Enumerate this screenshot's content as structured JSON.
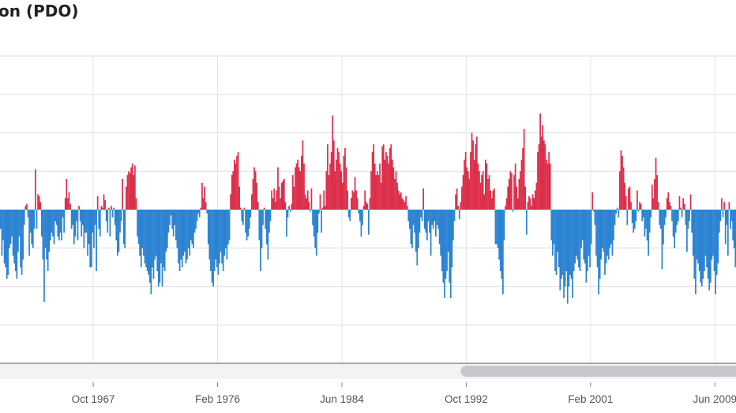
{
  "title": "on (PDO)",
  "colors": {
    "positive": "#dc2f4b",
    "negative": "#2b83d3",
    "grid": "#e4e4e4",
    "navigator_track": "#f3f3f4",
    "navigator_thumb": "#c6c8cb"
  },
  "chart_data": {
    "type": "bar",
    "title": "on (PDO)",
    "xlabel": "",
    "ylabel": "",
    "ylim": [
      -4,
      4
    ],
    "y_gridlines": [
      4,
      3,
      2,
      1,
      0,
      -1,
      -2,
      -3
    ],
    "grid": true,
    "start_month": "1961-07",
    "frequency": "monthly",
    "x_ticks": [
      {
        "label": "Oct 1967",
        "month": "1967-10"
      },
      {
        "label": "Feb 1976",
        "month": "1976-02"
      },
      {
        "label": "Jun 1984",
        "month": "1984-06"
      },
      {
        "label": "Oct 1992",
        "month": "1992-10"
      },
      {
        "label": "Feb 2001",
        "month": "2001-02"
      },
      {
        "label": "Jun 2009",
        "month": "2009-06"
      }
    ],
    "navigator_range_fraction": [
      0.626,
      1.0
    ],
    "values": [
      -0.5,
      -1.2,
      -0.8,
      -1.4,
      -1.5,
      -1.8,
      -1.7,
      -1.0,
      -0.9,
      -0.7,
      -1.2,
      -1.4,
      -1.6,
      -1.8,
      -1.1,
      -0.7,
      -1.5,
      -1.7,
      -1.3,
      -0.4,
      0.1,
      0.15,
      -0.2,
      -1.2,
      -0.6,
      -0.9,
      -1.0,
      -0.5,
      1.05,
      -0.5,
      0.4,
      0.35,
      0.2,
      -0.7,
      -1.3,
      -2.4,
      -1.0,
      -1.3,
      -1.6,
      -1.1,
      -0.8,
      -0.6,
      -0.7,
      -0.9,
      -0.3,
      -0.4,
      -0.7,
      -0.8,
      -0.6,
      -0.8,
      -0.2,
      -0.6,
      0.3,
      0.8,
      0.3,
      0.45,
      0.15,
      -0.5,
      -0.4,
      -0.9,
      -0.7,
      -0.3,
      -0.8,
      0.1,
      -0.3,
      -0.7,
      -0.4,
      -1.0,
      -0.6,
      -0.6,
      -1.2,
      -0.9,
      -1.5,
      -1.5,
      -0.6,
      -1.0,
      -0.4,
      -1.6,
      0.35,
      -0.5,
      -0.7,
      0.1,
      0.05,
      0.4,
      0.25,
      -0.3,
      -0.6,
      0.05,
      -0.7,
      0.1,
      -0.2,
      0.05,
      -0.4,
      -0.8,
      -1.2,
      -1.1,
      -0.6,
      -0.3,
      0.8,
      -0.9,
      -1.0,
      0.6,
      0.9,
      1.0,
      0.95,
      1.1,
      1.2,
      0.9,
      1.15,
      0.3,
      -0.7,
      -0.9,
      -1.2,
      -1.5,
      -1.0,
      -1.2,
      -1.4,
      -1.5,
      -1.6,
      -1.7,
      -1.9,
      -2.2,
      -1.5,
      -1.8,
      -1.3,
      -1.2,
      -1.6,
      -2.0,
      -1.9,
      -1.4,
      -2.0,
      -1.5,
      -1.6,
      -1.1,
      -1.0,
      -0.6,
      -0.4,
      -0.15,
      -0.5,
      -0.7,
      -0.4,
      -0.8,
      -1.0,
      -1.4,
      -1.6,
      -1.3,
      -1.5,
      -1.2,
      -1.1,
      -1.4,
      -1.3,
      -1.0,
      -1.2,
      -0.8,
      -0.9,
      -1.0,
      -0.6,
      -0.5,
      -0.3,
      -0.1,
      -0.2,
      0.05,
      0.7,
      0.3,
      0.6,
      0.2,
      -0.1,
      -0.9,
      -1.3,
      -1.6,
      -1.9,
      -2.0,
      -1.6,
      -1.3,
      -1.5,
      -1.7,
      -1.4,
      -1.1,
      -1.4,
      -1.6,
      -1.2,
      -1.0,
      -1.3,
      -0.9,
      -0.8,
      0.4,
      0.9,
      1.0,
      1.3,
      1.2,
      1.4,
      1.5,
      0.6,
      0.05,
      -0.3,
      -0.4,
      0.05,
      -0.6,
      -0.8,
      -0.7,
      -0.5,
      -0.2,
      0.4,
      0.8,
      1.1,
      1.0,
      0.7,
      0.2,
      -0.8,
      -1.6,
      -1.0,
      -0.4,
      0.05,
      -0.5,
      -0.9,
      -1.3,
      -0.6,
      -0.3,
      0.5,
      0.3,
      0.55,
      0.2,
      0.5,
      1.1,
      0.6,
      0.3,
      0.7,
      0.75,
      0.8,
      0.2,
      -0.7,
      -0.2,
      0.1,
      -0.05,
      0.15,
      0.9,
      0.6,
      1.1,
      1.2,
      1.3,
      1.1,
      1.0,
      1.4,
      1.8,
      1.2,
      0.4,
      0.3,
      0.5,
      0.2,
      -0.05,
      0.55,
      -0.4,
      -0.7,
      -1.0,
      -1.2,
      -0.6,
      -0.1,
      0.4,
      -0.6,
      0.05,
      0.5,
      0.1,
      1.0,
      1.7,
      0.9,
      1.2,
      1.5,
      2.45,
      1.8,
      1.0,
      1.3,
      1.6,
      1.5,
      1.2,
      1.0,
      0.7,
      1.4,
      1.6,
      1.1,
      0.5,
      -0.2,
      -0.3,
      0.3,
      0.5,
      0.45,
      0.85,
      0.5,
      0.3,
      -0.1,
      -0.3,
      -0.7,
      -0.4,
      0.1,
      0.5,
      0.2,
      0.15,
      -0.65,
      0.3,
      1.0,
      1.5,
      1.7,
      1.2,
      0.9,
      1.0,
      0.9,
      1.2,
      0.7,
      1.65,
      1.7,
      1.3,
      1.5,
      1.4,
      1.2,
      1.6,
      1.7,
      1.3,
      1.1,
      0.8,
      1.0,
      0.7,
      0.5,
      0.4,
      0.45,
      0.3,
      0.25,
      0.2,
      0.35,
      0.1,
      -0.3,
      -0.5,
      -0.9,
      -1.0,
      -0.4,
      -0.6,
      -1.1,
      -1.45,
      -1.0,
      -0.6,
      -0.2,
      -0.3,
      0.55,
      -0.5,
      -0.6,
      -0.8,
      -0.3,
      -0.6,
      -1.2,
      -0.4,
      -0.5,
      -0.3,
      -0.7,
      -0.4,
      -0.5,
      -0.9,
      -1.2,
      -1.6,
      -1.9,
      -2.3,
      -1.8,
      -1.6,
      -1.1,
      -1.9,
      -2.3,
      -1.5,
      -0.8,
      -0.3,
      0.4,
      0.55,
      0.1,
      -0.25,
      0.2,
      0.6,
      0.9,
      1.3,
      1.5,
      1.1,
      1.0,
      0.8,
      1.5,
      2.0,
      1.8,
      1.3,
      1.7,
      1.9,
      1.2,
      1.0,
      0.7,
      0.9,
      1.0,
      0.4,
      1.3,
      1.2,
      0.8,
      0.9,
      0.5,
      0.3,
      0.5,
      0.55,
      -0.9,
      -0.9,
      -1.0,
      -1.3,
      -1.6,
      -1.8,
      -2.2,
      -0.8,
      0.1,
      0.3,
      0.6,
      0.8,
      1.0,
      0.95,
      -0.05,
      0.9,
      1.2,
      0.6,
      0.3,
      0.8,
      1.0,
      1.3,
      1.6,
      2.1,
      0.6,
      -0.65,
      0.2,
      0.35,
      0.3,
      0.1,
      0.4,
      0.3,
      0.5,
      0.7,
      1.5,
      1.7,
      2.5,
      1.9,
      2.2,
      1.8,
      1.7,
      1.3,
      1.2,
      1.5,
      1.2,
      -0.8,
      -1.2,
      -0.9,
      -1.6,
      -1.7,
      -1.1,
      -1.5,
      -2.1,
      -1.8,
      -1.7,
      -2.3,
      -2.0,
      -1.6,
      -2.45,
      -2.0,
      -1.7,
      -1.8,
      -2.3,
      -1.6,
      -1.4,
      -1.2,
      -1.3,
      -1.5,
      -1.6,
      -1.0,
      -0.8,
      -1.3,
      -1.4,
      -1.9,
      -1.6,
      -1.2,
      -1.5,
      -0.9,
      0.45,
      -0.05,
      -0.4,
      -1.2,
      -1.5,
      -2.2,
      -1.8,
      -1.3,
      -1.0,
      -1.1,
      -1.7,
      -1.4,
      -1.2,
      -1.3,
      -1.0,
      -0.9,
      -1.2,
      -0.8,
      -0.4,
      -0.1,
      0.05,
      -0.2,
      1.0,
      1.55,
      1.4,
      1.1,
      0.7,
      0.35,
      -0.4,
      0.55,
      0.6,
      0.2,
      -0.35,
      -0.6,
      -0.5,
      -0.3,
      0.5,
      -0.05,
      0.2,
      0.15,
      -0.3,
      -0.2,
      -0.7,
      -0.5,
      -0.8,
      -1.2,
      -0.6,
      -0.2,
      0.65,
      0.3,
      0.8,
      1.35,
      0.9,
      0.2,
      -0.4,
      -0.5,
      -1.55,
      -0.9,
      -0.4,
      -0.2,
      0.3,
      0.45,
      0.2,
      0.1,
      -0.3,
      -0.7,
      -1.0,
      -0.6,
      -0.4,
      -0.3,
      0.35,
      0.05,
      -0.2,
      0.3,
      0.15,
      -0.4,
      -1.1,
      -0.5,
      -0.3,
      0.4,
      -0.6,
      -1.2,
      -1.8,
      -2.2,
      -1.3,
      -1.4,
      -1.6,
      -1.9,
      -2.0,
      -1.8,
      -1.6,
      -1.2,
      -1.5,
      -1.8,
      -2.1,
      -1.9,
      -1.3,
      -1.2,
      -1.6,
      -2.2,
      -1.7,
      -1.4,
      -0.6,
      -0.3,
      0.3,
      -0.2,
      0.2,
      -0.9,
      -0.4,
      -1.2,
      0.2,
      -0.5,
      -0.3,
      -0.8,
      -1.0,
      -1.5
    ]
  }
}
